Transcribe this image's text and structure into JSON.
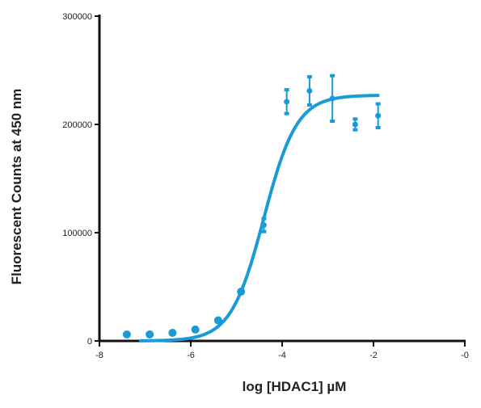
{
  "chart_data": {
    "type": "scatter",
    "xlabel": "log [HDAC1] µM",
    "ylabel": "Fluorescent Counts at 450 nm",
    "xlim": [
      -8,
      0
    ],
    "ylim": [
      0,
      300000
    ],
    "xticks": [
      -8,
      -6,
      -4,
      -2,
      0
    ],
    "xtick_labels": [
      "-8",
      "-6",
      "-4",
      "-2",
      "-0"
    ],
    "yticks": [
      0,
      100000,
      200000,
      300000
    ],
    "ytick_labels": [
      "0",
      "100000",
      "200000",
      "300000"
    ],
    "grid": false,
    "legend": "none",
    "color": "#1a9ad6",
    "points": [
      {
        "x": -7.4,
        "y": 6000,
        "err": 0
      },
      {
        "x": -6.9,
        "y": 6000,
        "err": 0
      },
      {
        "x": -6.4,
        "y": 7500,
        "err": 0
      },
      {
        "x": -5.9,
        "y": 10500,
        "err": 0
      },
      {
        "x": -5.4,
        "y": 19000,
        "err": 0
      },
      {
        "x": -4.9,
        "y": 45500,
        "err": 0
      },
      {
        "x": -4.4,
        "y": 107000,
        "err": 6000
      },
      {
        "x": -3.9,
        "y": 221000,
        "err": 11000
      },
      {
        "x": -3.4,
        "y": 231000,
        "err": 13000
      },
      {
        "x": -2.9,
        "y": 224000,
        "err": 21000
      },
      {
        "x": -2.4,
        "y": 200000,
        "err": 5000
      },
      {
        "x": -1.9,
        "y": 208000,
        "err": 11000
      }
    ],
    "fit": {
      "model": "4-parameter logistic",
      "bottom": 0,
      "top": 227000,
      "log_ec50": -4.4,
      "hill_slope": 1.2,
      "x_range": [
        -7.1,
        -1.9
      ]
    }
  }
}
